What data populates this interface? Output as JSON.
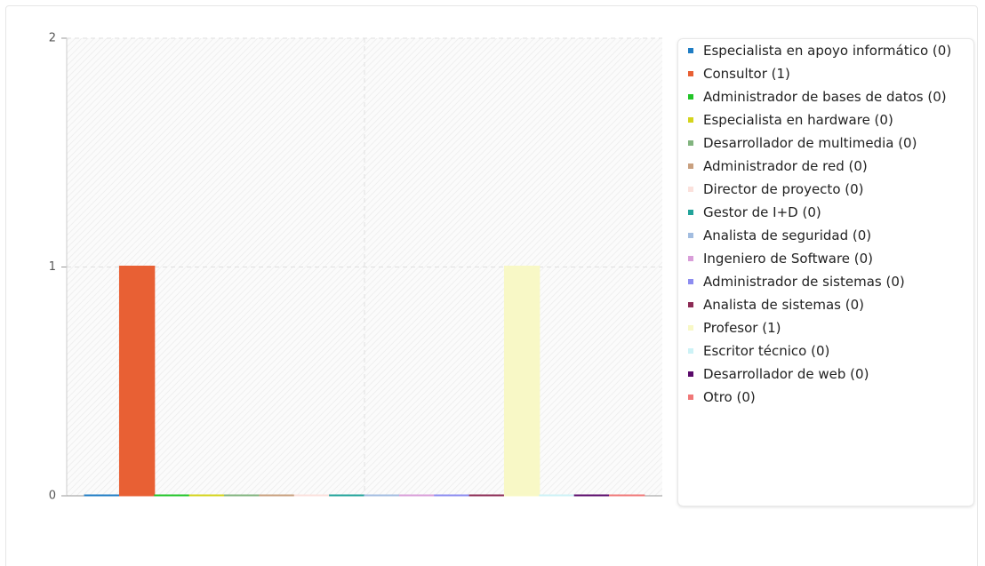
{
  "chart_data": {
    "type": "bar",
    "categories": [
      null
    ],
    "series": [
      {
        "name": "Especialista en apoyo informático (0)",
        "color": "#1f7dc4",
        "values": [
          0
        ]
      },
      {
        "name": "Consultor (1)",
        "color": "#e86034",
        "values": [
          1
        ]
      },
      {
        "name": "Administrador de bases de datos (0)",
        "color": "#22c428",
        "values": [
          0
        ]
      },
      {
        "name": "Especialista en hardware (0)",
        "color": "#d4d41c",
        "values": [
          0
        ]
      },
      {
        "name": "Desarrollador de multimedia (0)",
        "color": "#82b47f",
        "values": [
          0
        ]
      },
      {
        "name": "Administrador de red (0)",
        "color": "#c9a07f",
        "values": [
          0
        ]
      },
      {
        "name": "Director de proyecto (0)",
        "color": "#fbe1dc",
        "values": [
          0
        ]
      },
      {
        "name": "Gestor de I+D (0)",
        "color": "#22a39a",
        "values": [
          0
        ]
      },
      {
        "name": "Analista de seguridad (0)",
        "color": "#a3bde0",
        "values": [
          0
        ]
      },
      {
        "name": "Ingeniero de Software (0)",
        "color": "#d99ed9",
        "values": [
          0
        ]
      },
      {
        "name": "Administrador de sistemas (0)",
        "color": "#8c8cf0",
        "values": [
          0
        ]
      },
      {
        "name": "Analista de sistemas (0)",
        "color": "#8c2b55",
        "values": [
          0
        ]
      },
      {
        "name": "Profesor (1)",
        "color": "#f8f8c6",
        "values": [
          1
        ]
      },
      {
        "name": "Escritor técnico (0)",
        "color": "#cdf2f6",
        "values": [
          0
        ]
      },
      {
        "name": "Desarrollador de web (0)",
        "color": "#5a0a6a",
        "values": [
          0
        ]
      },
      {
        "name": "Otro (0)",
        "color": "#f07878",
        "values": [
          0
        ]
      }
    ],
    "ylim": [
      0,
      2
    ],
    "yticks": [
      0,
      1,
      2
    ],
    "grid": true
  }
}
